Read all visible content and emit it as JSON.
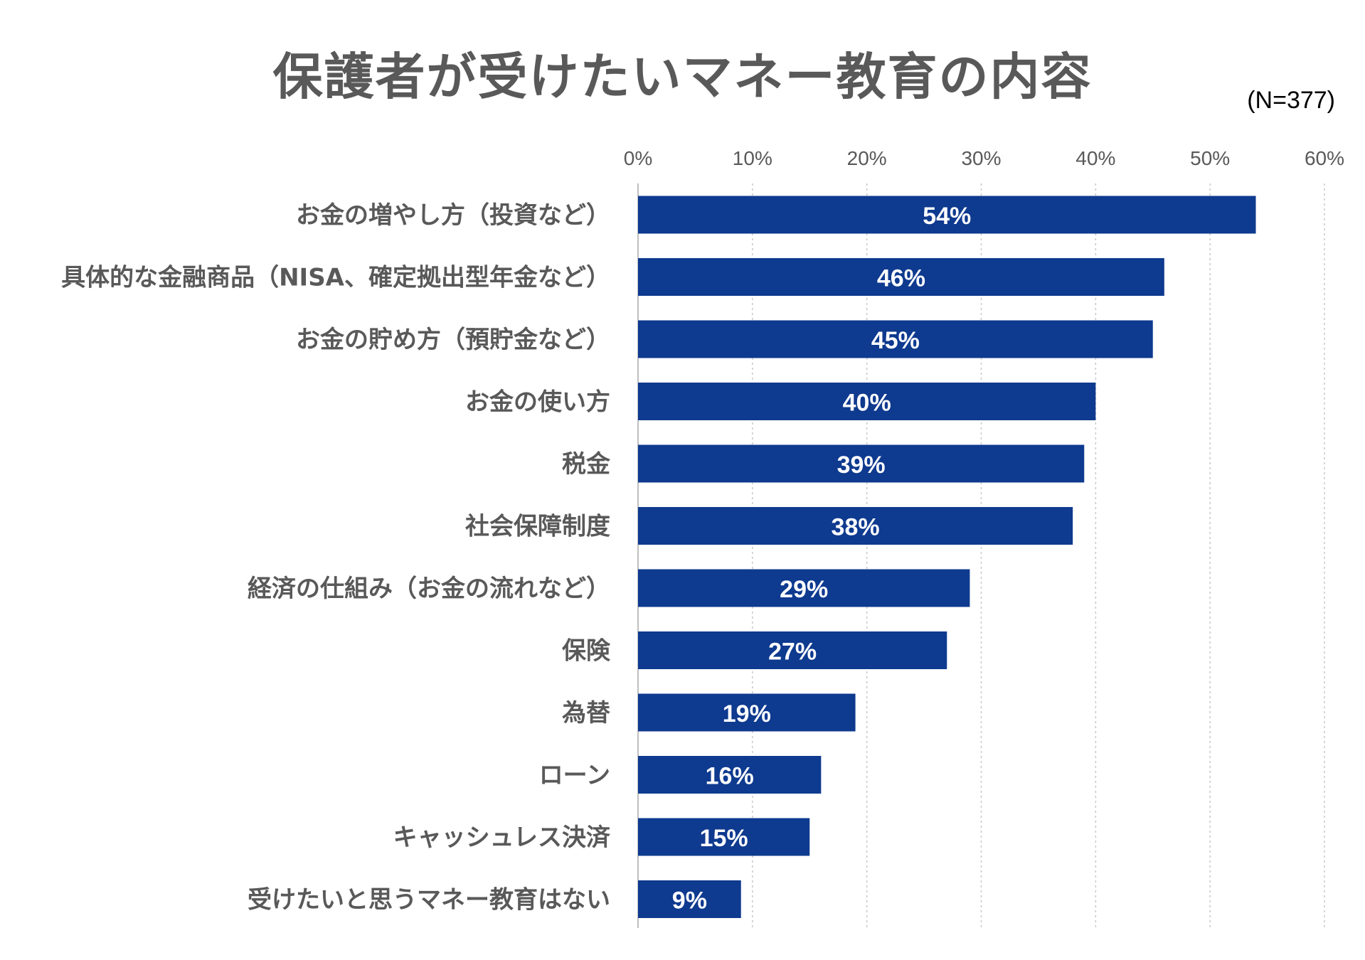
{
  "chart_data": {
    "type": "bar",
    "orientation": "horizontal",
    "title": "保護者が受けたいマネー教育の内容",
    "sample_size": "(N=377)",
    "categories": [
      "お金の増やし方（投資など）",
      "具体的な金融商品（NISA、確定拠出型年金など）",
      "お金の貯め方（預貯金など）",
      "お金の使い方",
      "税金",
      "社会保障制度",
      "経済の仕組み（お金の流れなど）",
      "保険",
      "為替",
      "ローン",
      "キャッシュレス決済",
      "受けたいと思うマネー教育はない"
    ],
    "values": [
      54,
      46,
      45,
      40,
      39,
      38,
      29,
      27,
      19,
      16,
      15,
      9
    ],
    "value_labels": [
      "54%",
      "46%",
      "45%",
      "40%",
      "39%",
      "38%",
      "29%",
      "27%",
      "19%",
      "16%",
      "15%",
      "9%"
    ],
    "xlim": [
      0,
      60
    ],
    "x_ticks": [
      "0%",
      "10%",
      "20%",
      "30%",
      "40%",
      "50%",
      "60%"
    ],
    "x_axis_position": "top",
    "grid": true,
    "bar_color": "#0E3A8F",
    "xlabel": "",
    "ylabel": ""
  }
}
